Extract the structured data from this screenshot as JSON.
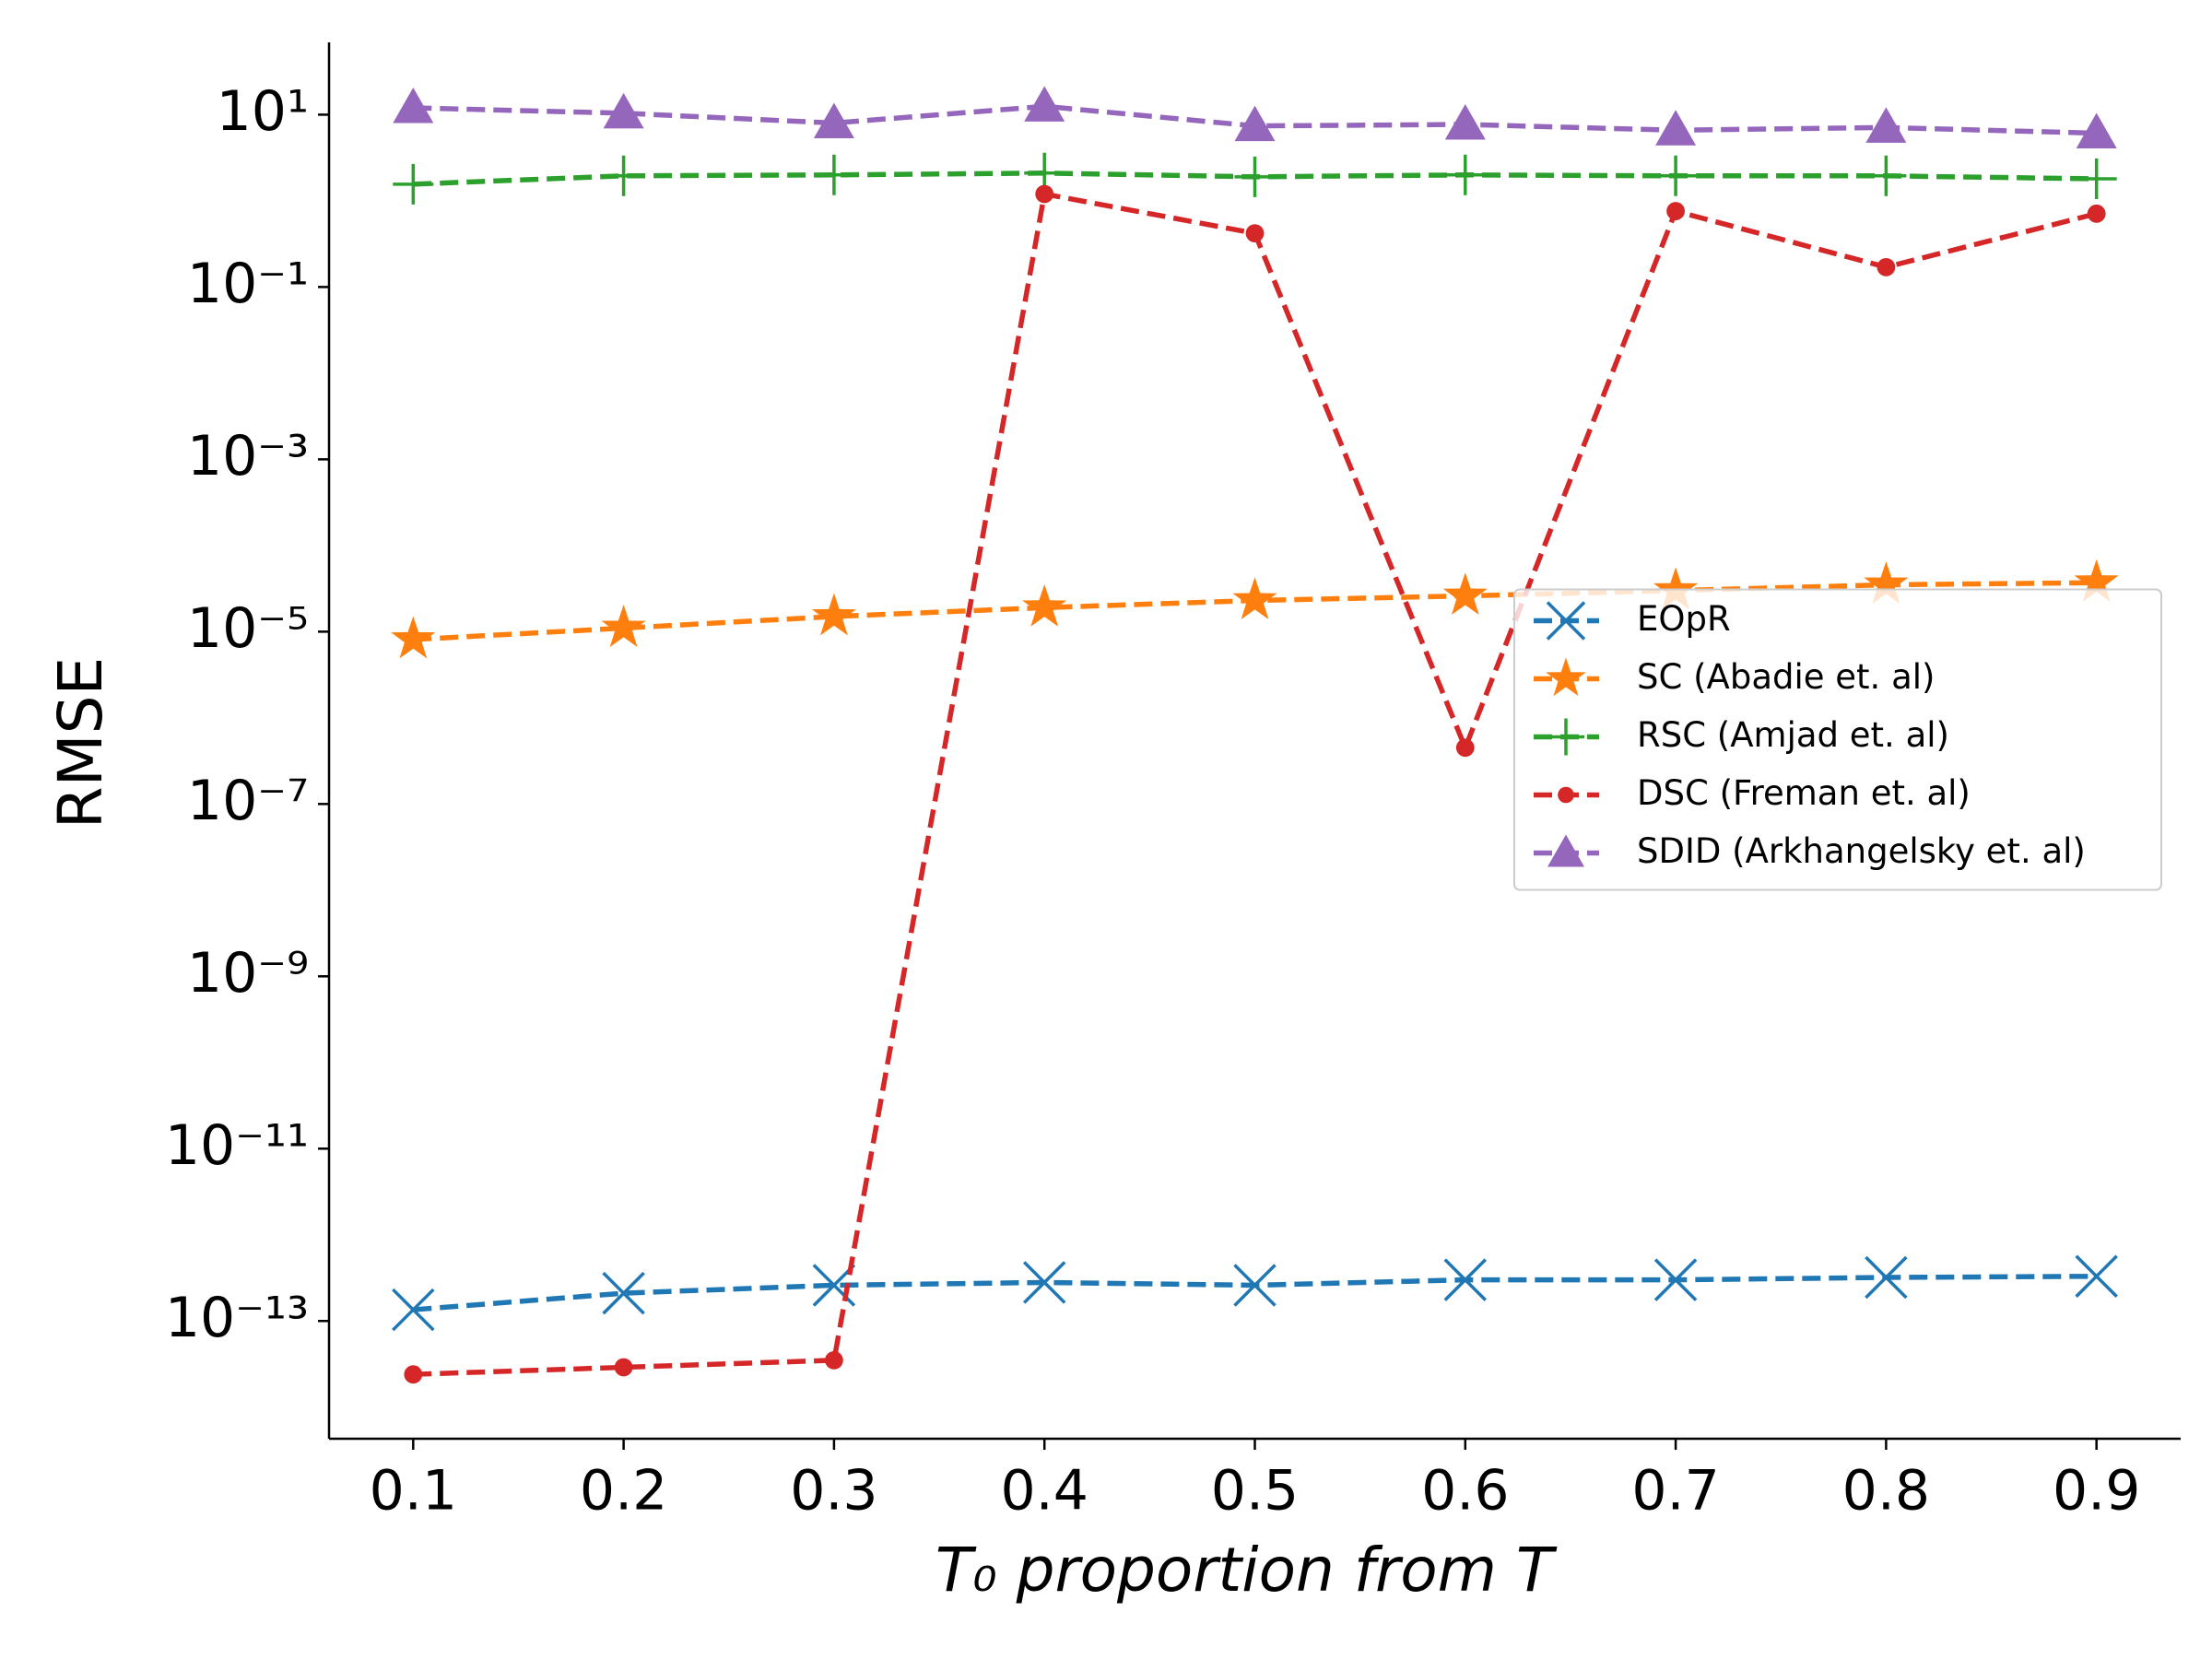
{
  "chart_data": {
    "type": "line",
    "xlabel": "T₀ proportion from T",
    "ylabel": "RMSE",
    "x": [
      0.1,
      0.2,
      0.3,
      0.4,
      0.5,
      0.6,
      0.7,
      0.8,
      0.9
    ],
    "series": [
      {
        "name": "EOpR",
        "color": "#1f77b4",
        "marker": "x",
        "values": [
          1.35e-13,
          2.1e-13,
          2.6e-13,
          2.8e-13,
          2.6e-13,
          3e-13,
          3e-13,
          3.2e-13,
          3.3e-13
        ]
      },
      {
        "name": "SC (Abadie et. al)",
        "color": "#ff7f0e",
        "marker": "*",
        "values": [
          8.1e-06,
          1.1e-05,
          1.5e-05,
          1.9e-05,
          2.3e-05,
          2.6e-05,
          3e-05,
          3.5e-05,
          3.7e-05
        ]
      },
      {
        "name": "RSC (Amjad et. al)",
        "color": "#2ca02c",
        "marker": "+",
        "values": [
          1.56,
          1.95,
          2.0,
          2.1,
          1.9,
          2.0,
          1.95,
          1.95,
          1.8
        ]
      },
      {
        "name": "DSC (Freman et. al)",
        "color": "#d62728",
        "marker": "o",
        "values": [
          2.4e-14,
          2.9e-14,
          3.5e-14,
          1.2,
          0.42,
          4.5e-07,
          0.76,
          0.17,
          0.71
        ]
      },
      {
        "name": "SDID (Arkhangelsky et. al)",
        "color": "#9467bd",
        "marker": "^",
        "values": [
          12,
          10.4,
          8,
          12.5,
          7.4,
          7.7,
          6.6,
          7.1,
          6.1
        ]
      }
    ],
    "linestyle": "dashed",
    "xlim": [
      0.06,
      0.94
    ],
    "xticks": [
      0.1,
      0.2,
      0.3,
      0.4,
      0.5,
      0.6,
      0.7,
      0.8,
      0.9
    ],
    "ylog": true,
    "ylim": [
      4.3e-15,
      69
    ],
    "yticks": [
      {
        "value": 10,
        "label": "10¹"
      },
      {
        "value": 0.1,
        "label": "10⁻¹"
      },
      {
        "value": 0.001,
        "label": "10⁻³"
      },
      {
        "value": 1e-05,
        "label": "10⁻⁵"
      },
      {
        "value": 1e-07,
        "label": "10⁻⁷"
      },
      {
        "value": 1e-09,
        "label": "10⁻⁹"
      },
      {
        "value": 1e-11,
        "label": "10⁻¹¹"
      },
      {
        "value": 1e-13,
        "label": "10⁻¹³"
      }
    ],
    "legend": "center right"
  }
}
